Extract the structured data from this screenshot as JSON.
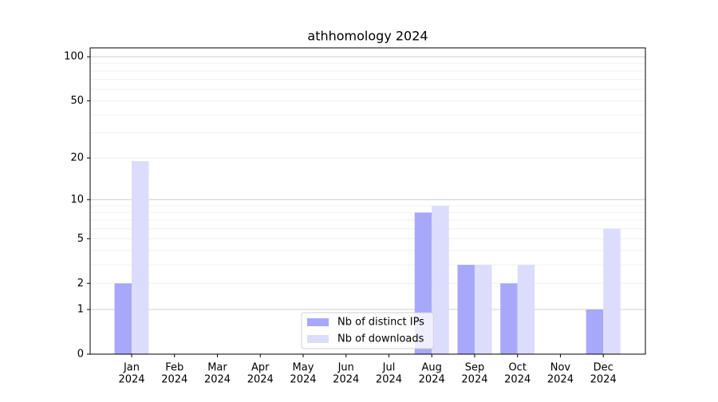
{
  "chart_data": {
    "type": "bar",
    "title": "athhomology 2024",
    "categories": [
      [
        "Jan",
        "2024"
      ],
      [
        "Feb",
        "2024"
      ],
      [
        "Mar",
        "2024"
      ],
      [
        "Apr",
        "2024"
      ],
      [
        "May",
        "2024"
      ],
      [
        "Jun",
        "2024"
      ],
      [
        "Jul",
        "2024"
      ],
      [
        "Aug",
        "2024"
      ],
      [
        "Sep",
        "2024"
      ],
      [
        "Oct",
        "2024"
      ],
      [
        "Nov",
        "2024"
      ],
      [
        "Dec",
        "2024"
      ]
    ],
    "series": [
      {
        "name": "Nb of distinct IPs",
        "color": "#a8a8fa",
        "values": [
          2,
          0,
          0,
          0,
          0,
          0,
          0,
          8,
          3,
          2,
          0,
          1
        ]
      },
      {
        "name": "Nb of downloads",
        "color": "#dcdcfc",
        "values": [
          19,
          0,
          0,
          0,
          0,
          0,
          0,
          9,
          3,
          3,
          0,
          6
        ]
      }
    ],
    "yscale": "log1p",
    "ylim": [
      0,
      115
    ],
    "yticks": [
      0,
      1,
      2,
      5,
      10,
      20,
      50,
      100
    ],
    "minor_yticks": [
      3,
      4,
      6,
      7,
      8,
      9,
      30,
      40,
      60,
      70,
      80,
      90
    ],
    "grid": true,
    "legend": "lower center"
  }
}
